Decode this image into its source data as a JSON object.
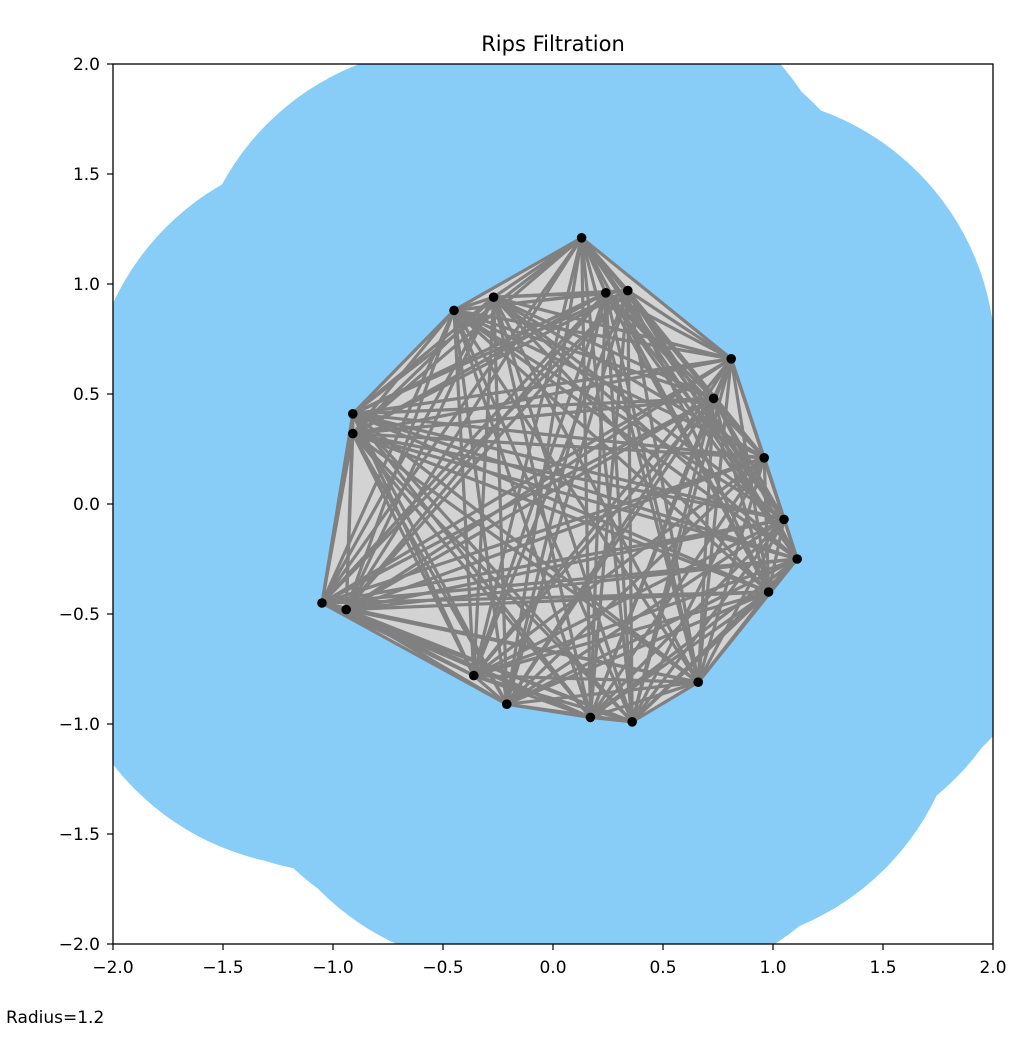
{
  "chart_data": {
    "type": "scatter",
    "title": "Rips Filtration",
    "xlabel": "",
    "ylabel": "",
    "xlim": [
      -2.0,
      2.0
    ],
    "ylim": [
      -2.0,
      2.0
    ],
    "x_ticks": [
      "−2.0",
      "−1.5",
      "−1.0",
      "−0.5",
      "0.0",
      "0.5",
      "1.0",
      "1.5",
      "2.0"
    ],
    "y_ticks": [
      "2.0",
      "1.5",
      "1.0",
      "0.5",
      "0.0",
      "−0.5",
      "−1.0",
      "−1.5",
      "−2.0"
    ],
    "x_tick_values": [
      -2.0,
      -1.5,
      -1.0,
      -0.5,
      0.0,
      0.5,
      1.0,
      1.5,
      2.0
    ],
    "y_tick_values": [
      2.0,
      1.5,
      1.0,
      0.5,
      0.0,
      -0.5,
      -1.0,
      -1.5,
      -2.0
    ],
    "radius": 1.2,
    "radius_label": "Radius=1.2",
    "points": [
      {
        "x": 0.13,
        "y": 1.21
      },
      {
        "x": 0.24,
        "y": 0.96
      },
      {
        "x": 0.34,
        "y": 0.97
      },
      {
        "x": -0.45,
        "y": 0.88
      },
      {
        "x": -0.27,
        "y": 0.94
      },
      {
        "x": 0.81,
        "y": 0.66
      },
      {
        "x": 0.73,
        "y": 0.48
      },
      {
        "x": -0.91,
        "y": 0.41
      },
      {
        "x": -0.91,
        "y": 0.32
      },
      {
        "x": 0.96,
        "y": 0.21
      },
      {
        "x": 1.05,
        "y": -0.07
      },
      {
        "x": 1.11,
        "y": -0.25
      },
      {
        "x": 0.98,
        "y": -0.4
      },
      {
        "x": -1.05,
        "y": -0.45
      },
      {
        "x": -0.94,
        "y": -0.48
      },
      {
        "x": -0.36,
        "y": -0.78
      },
      {
        "x": 0.66,
        "y": -0.81
      },
      {
        "x": -0.21,
        "y": -0.91
      },
      {
        "x": 0.17,
        "y": -0.97
      },
      {
        "x": 0.36,
        "y": -0.99
      }
    ],
    "colors": {
      "coverage": "#87CDF8",
      "simplex_fill": "#D3D3D3",
      "edge": "#808080",
      "point": "#000000"
    }
  }
}
